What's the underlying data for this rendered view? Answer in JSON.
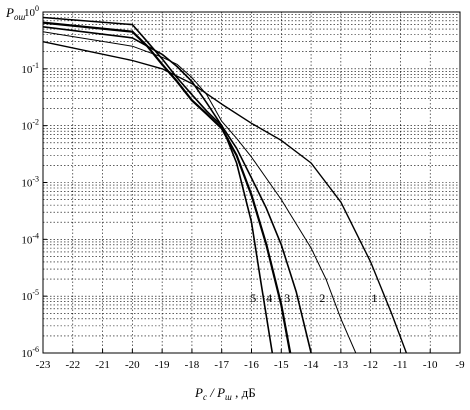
{
  "chart_data": {
    "type": "line",
    "title": "",
    "ylabel": {
      "main": "P",
      "sub": "ош"
    },
    "xlabel": {
      "a": "P",
      "a_sub": "c",
      "sep": " / ",
      "b": "P",
      "b_sub": "ш",
      "unit": " , дБ"
    },
    "xlim": [
      -23,
      -9
    ],
    "ylim": [
      1e-06,
      1
    ],
    "yscale": "log",
    "x_ticks": [
      -23,
      -22,
      -21,
      -20,
      -19,
      -18,
      -17,
      -16,
      -15,
      -14,
      -13,
      -12,
      -11,
      -10,
      -9
    ],
    "y_ticks": [
      {
        "base": "10",
        "exp": "0",
        "value": 1
      },
      {
        "base": "10",
        "exp": "-1",
        "value": 0.1
      },
      {
        "base": "10",
        "exp": "-2",
        "value": 0.01
      },
      {
        "base": "10",
        "exp": "-3",
        "value": 0.001
      },
      {
        "base": "10",
        "exp": "-4",
        "value": 0.0001
      },
      {
        "base": "10",
        "exp": "-5",
        "value": 1e-05
      },
      {
        "base": "10",
        "exp": "-6",
        "value": 1e-06
      }
    ],
    "grid": true,
    "series": [
      {
        "name": "1",
        "x": [
          -23,
          -20,
          -19,
          -18,
          -17,
          -16,
          -15,
          -14,
          -13,
          -12,
          -11.3,
          -10.8
        ],
        "y": [
          0.3,
          0.14,
          0.1,
          0.055,
          0.024,
          0.011,
          0.0055,
          0.0022,
          0.00045,
          4e-05,
          5e-06,
          1e-06
        ]
      },
      {
        "name": "2",
        "x": [
          -23,
          -20,
          -19,
          -18.5,
          -18,
          -17.5,
          -17,
          -16.5,
          -16,
          -15,
          -14,
          -13.5,
          -13,
          -12.5
        ],
        "y": [
          0.45,
          0.25,
          0.16,
          0.12,
          0.07,
          0.035,
          0.012,
          0.006,
          0.0028,
          0.0005,
          7e-05,
          2e-05,
          4e-06,
          1e-06
        ]
      },
      {
        "name": "3",
        "x": [
          -23,
          -20,
          -19,
          -18.5,
          -18,
          -17.5,
          -17,
          -16.5,
          -16,
          -15.5,
          -15,
          -14.5,
          -14
        ],
        "y": [
          0.55,
          0.35,
          0.18,
          0.11,
          0.06,
          0.025,
          0.01,
          0.004,
          0.0012,
          0.00035,
          8e-05,
          1.2e-05,
          1e-06
        ]
      },
      {
        "name": "4",
        "x": [
          -23,
          -20,
          -19.5,
          -19,
          -18.5,
          -18,
          -17.5,
          -17,
          -16.5,
          -16,
          -15.5,
          -15,
          -14.7
        ],
        "y": [
          0.65,
          0.45,
          0.25,
          0.12,
          0.06,
          0.028,
          0.016,
          0.009,
          0.003,
          0.0006,
          8e-05,
          7e-06,
          1e-06
        ]
      },
      {
        "name": "5",
        "x": [
          -23,
          -20,
          -19.5,
          -19,
          -18.5,
          -18,
          -17.5,
          -17,
          -16.5,
          -16,
          -15.7,
          -15.3
        ],
        "y": [
          0.8,
          0.6,
          0.3,
          0.15,
          0.07,
          0.035,
          0.018,
          0.01,
          0.0022,
          0.0002,
          2e-05,
          1e-06
        ]
      }
    ]
  }
}
